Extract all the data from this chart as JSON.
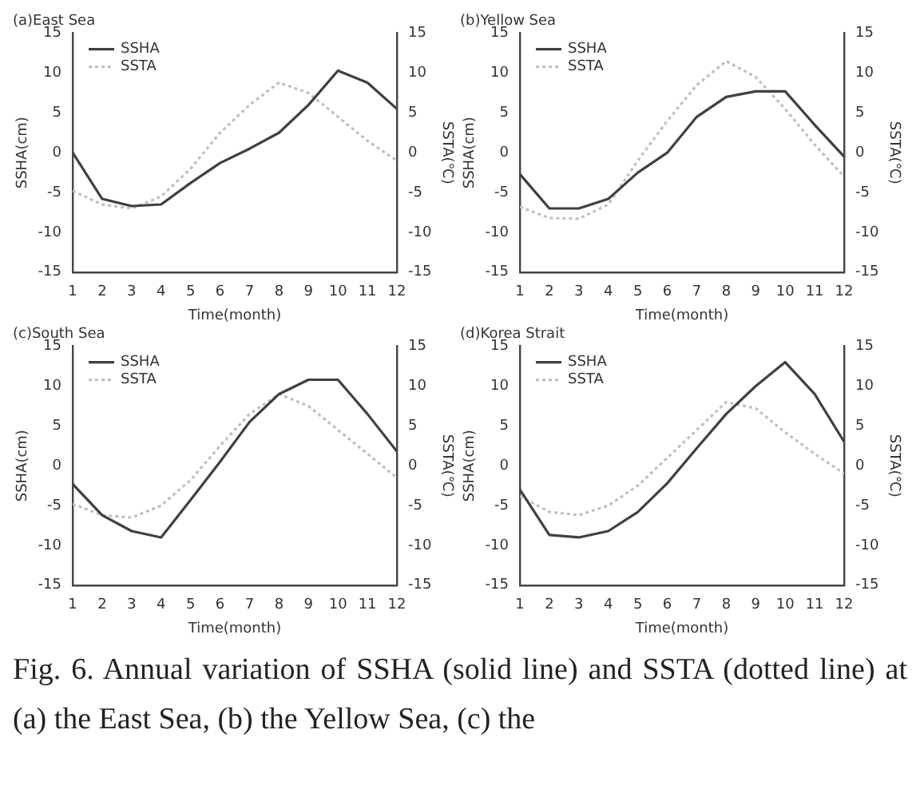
{
  "chart_data": [
    {
      "type": "line",
      "title": "(a)East Sea",
      "xlabel": "Time(month)",
      "ylabel": "SSHA(cm)",
      "y2label": "SSTA(℃)",
      "x": [
        1,
        2,
        3,
        4,
        5,
        6,
        7,
        8,
        9,
        10,
        11,
        12
      ],
      "xlim": [
        1,
        12
      ],
      "xticks": [
        1,
        2,
        3,
        4,
        5,
        6,
        7,
        8,
        9,
        10,
        11,
        12
      ],
      "ylim": [
        -15,
        15
      ],
      "yticks": [
        -15,
        -10,
        -5,
        0,
        5,
        10,
        15
      ],
      "y2lim": [
        -15,
        15
      ],
      "y2ticks": [
        -15,
        -10,
        -5,
        0,
        5,
        10,
        15
      ],
      "legend": "top left",
      "grid": false,
      "series": [
        {
          "name": "SSHA",
          "color": "#404040",
          "line_style": "solid",
          "values": [
            0,
            -5.8,
            -6.7,
            -6.5,
            -3.8,
            -1.3,
            0.5,
            2.5,
            6,
            10.3,
            8.8,
            5.5
          ]
        },
        {
          "name": "SSTA",
          "color": "#c0c0c0",
          "line_style": "dotted",
          "values": [
            -4.8,
            -6.5,
            -7,
            -5.5,
            -2,
            2.5,
            6,
            8.8,
            7.5,
            4.5,
            1.5,
            -1
          ]
        }
      ]
    },
    {
      "type": "line",
      "title": "(b)Yellow Sea",
      "xlabel": "Time(month)",
      "ylabel": "SSHA(cm)",
      "y2label": "SSTA(℃)",
      "x": [
        1,
        2,
        3,
        4,
        5,
        6,
        7,
        8,
        9,
        10,
        11,
        12
      ],
      "xlim": [
        1,
        12
      ],
      "xticks": [
        1,
        2,
        3,
        4,
        5,
        6,
        7,
        8,
        9,
        10,
        11,
        12
      ],
      "ylim": [
        -15,
        15
      ],
      "yticks": [
        -15,
        -10,
        -5,
        0,
        5,
        10,
        15
      ],
      "y2lim": [
        -15,
        15
      ],
      "y2ticks": [
        -15,
        -10,
        -5,
        0,
        5,
        10,
        15
      ],
      "legend": "top left",
      "grid": false,
      "series": [
        {
          "name": "SSHA",
          "color": "#404040",
          "line_style": "solid",
          "values": [
            -2.7,
            -7,
            -7,
            -5.8,
            -2.5,
            0,
            4.5,
            7,
            7.7,
            7.7,
            3.5,
            -0.5
          ]
        },
        {
          "name": "SSTA",
          "color": "#c0c0c0",
          "line_style": "dotted",
          "values": [
            -6.8,
            -8.2,
            -8.3,
            -6.5,
            -1,
            4,
            8.5,
            11.5,
            9.5,
            5.5,
            1,
            -3
          ]
        }
      ]
    },
    {
      "type": "line",
      "title": "(c)South Sea",
      "xlabel": "Time(month)",
      "ylabel": "SSHA(cm)",
      "y2label": "SSTA(℃)",
      "x": [
        1,
        2,
        3,
        4,
        5,
        6,
        7,
        8,
        9,
        10,
        11,
        12
      ],
      "xlim": [
        1,
        12
      ],
      "xticks": [
        1,
        2,
        3,
        4,
        5,
        6,
        7,
        8,
        9,
        10,
        11,
        12
      ],
      "ylim": [
        -15,
        15
      ],
      "yticks": [
        -15,
        -10,
        -5,
        0,
        5,
        10,
        15
      ],
      "y2lim": [
        -15,
        15
      ],
      "y2ticks": [
        -15,
        -10,
        -5,
        0,
        5,
        10,
        15
      ],
      "legend": "top left",
      "grid": false,
      "series": [
        {
          "name": "SSHA",
          "color": "#404040",
          "line_style": "solid",
          "values": [
            -2.3,
            -6.2,
            -8.2,
            -9,
            -4.3,
            0.5,
            5.5,
            9,
            10.8,
            10.8,
            6.5,
            1.8
          ]
        },
        {
          "name": "SSTA",
          "color": "#c0c0c0",
          "line_style": "dotted",
          "values": [
            -4.8,
            -6.2,
            -6.5,
            -5,
            -1.8,
            2.5,
            6.5,
            9,
            7.5,
            4.5,
            1.5,
            -1.5
          ]
        }
      ]
    },
    {
      "type": "line",
      "title": "(d)Korea Strait",
      "xlabel": "Time(month)",
      "ylabel": "SSHA(cm)",
      "y2label": "SSTA(℃)",
      "x": [
        1,
        2,
        3,
        4,
        5,
        6,
        7,
        8,
        9,
        10,
        11,
        12
      ],
      "xlim": [
        1,
        12
      ],
      "xticks": [
        1,
        2,
        3,
        4,
        5,
        6,
        7,
        8,
        9,
        10,
        11,
        12
      ],
      "ylim": [
        -15,
        15
      ],
      "yticks": [
        -15,
        -10,
        -5,
        0,
        5,
        10,
        15
      ],
      "y2lim": [
        -15,
        15
      ],
      "y2ticks": [
        -15,
        -10,
        -5,
        0,
        5,
        10,
        15
      ],
      "legend": "top left",
      "grid": false,
      "series": [
        {
          "name": "SSHA",
          "color": "#404040",
          "line_style": "solid",
          "values": [
            -3,
            -8.7,
            -9,
            -8.2,
            -5.8,
            -2.2,
            2.2,
            6.5,
            10,
            13,
            9,
            3
          ]
        },
        {
          "name": "SSTA",
          "color": "#c0c0c0",
          "line_style": "dotted",
          "values": [
            -3.8,
            -5.8,
            -6.2,
            -5,
            -2.5,
            1,
            4.5,
            8,
            7.2,
            4.2,
            1.5,
            -1
          ]
        }
      ]
    },
    {
      "type": "other",
      "annotations": [
        "Fig. 6. Annual variation of SSHA (solid line) and SSTA (dotted line) at (a) the East Sea, (b) the Yellow Sea, (c) the"
      ]
    }
  ]
}
